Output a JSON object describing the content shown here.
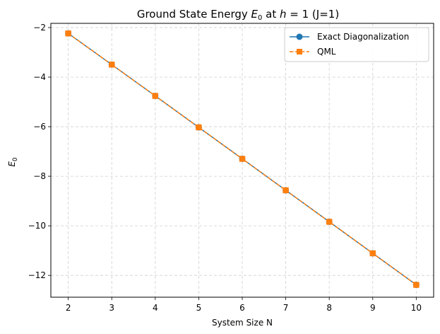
{
  "chart_data": {
    "type": "line",
    "title_main": "Ground State Energy ",
    "title_symbol": "E",
    "title_sub": "0",
    "title_rest_1": " at ",
    "title_h": "h",
    "title_rest_2": " = 1 (J=1)",
    "xlabel": "System Size N",
    "ylabel_symbol": "E",
    "ylabel_sub": "0",
    "x": [
      2,
      3,
      4,
      5,
      6,
      7,
      8,
      9,
      10
    ],
    "xlim": [
      1.6,
      10.4
    ],
    "ylim": [
      -12.88,
      -1.83
    ],
    "xticks": [
      2,
      3,
      4,
      5,
      6,
      7,
      8,
      9,
      10
    ],
    "yticks": [
      -2,
      -4,
      -6,
      -8,
      -10,
      -12
    ],
    "ytick_labels": [
      "−2",
      "−4",
      "−6",
      "−8",
      "−10",
      "−12"
    ],
    "grid": true,
    "legend_position": "top-right",
    "series": [
      {
        "name": "Exact Diagonalization",
        "color": "#1f77b4",
        "marker": "circle",
        "linestyle": "solid",
        "values": [
          -2.236,
          -3.494,
          -4.758,
          -6.026,
          -7.296,
          -8.566,
          -9.837,
          -11.109,
          -12.381
        ]
      },
      {
        "name": "QML",
        "color": "#ff7f0e",
        "marker": "square",
        "linestyle": "dashed",
        "values": [
          -2.236,
          -3.494,
          -4.758,
          -6.026,
          -7.296,
          -8.566,
          -9.837,
          -11.109,
          -12.381
        ]
      }
    ]
  }
}
